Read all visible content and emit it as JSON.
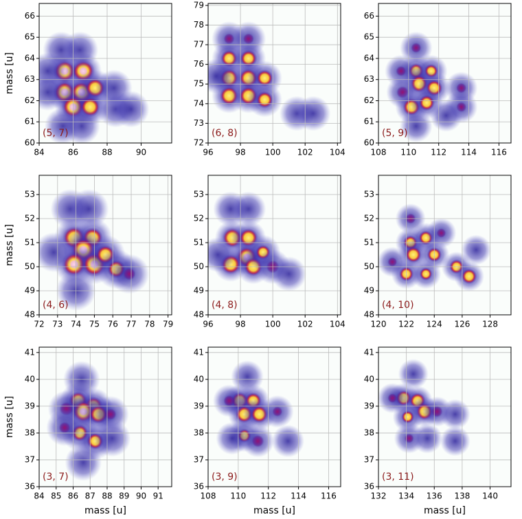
{
  "chart_data": [
    {
      "type": "heatmap",
      "label": "(5, 7)",
      "ylabel": "mass [u]",
      "xlim": [
        84,
        91.8
      ],
      "xticks": [
        84,
        86,
        88,
        90
      ],
      "ylim": [
        60,
        66.6
      ],
      "yticks": [
        60,
        61,
        62,
        63,
        64,
        65,
        66
      ],
      "grid": true,
      "x": [
        85.5,
        86.6,
        85.5,
        86.5,
        87.3,
        86,
        87,
        84.5,
        84.5,
        85.3,
        86.4,
        88.5,
        89.4,
        86.5,
        85.4,
        88.4
      ],
      "y": [
        63.4,
        63.4,
        62.4,
        62.4,
        62.6,
        61.7,
        61.7,
        63.4,
        62.4,
        64.4,
        64.4,
        61.6,
        61.6,
        60.8,
        60.8,
        62.6
      ],
      "values": [
        1,
        1,
        1,
        1,
        0.9,
        1,
        0.9,
        0.4,
        0.4,
        0.35,
        0.35,
        0.4,
        0.3,
        0.35,
        0.3,
        0.4
      ]
    },
    {
      "type": "heatmap",
      "label": "(6, 8)",
      "xlim": [
        96,
        104.2
      ],
      "xticks": [
        96,
        98,
        100,
        102,
        104
      ],
      "ylim": [
        72,
        79.1
      ],
      "yticks": [
        72,
        73,
        74,
        75,
        76,
        77,
        78,
        79
      ],
      "grid": true,
      "x": [
        97.3,
        98.5,
        97.3,
        98.5,
        97.3,
        98.5,
        99.5,
        97.3,
        98.5,
        99.5,
        101.5,
        102.5,
        96.5
      ],
      "y": [
        77.3,
        77.3,
        76.3,
        76.3,
        75.3,
        75.3,
        75.3,
        74.4,
        74.4,
        74.2,
        73.5,
        73.5,
        75.4
      ],
      "values": [
        0.5,
        0.5,
        0.8,
        0.8,
        0.9,
        0.9,
        0.8,
        0.9,
        0.9,
        0.8,
        0.4,
        0.45,
        0.4
      ]
    },
    {
      "type": "heatmap",
      "label": "(5, 9)",
      "xlim": [
        108,
        116.8
      ],
      "xticks": [
        108,
        110,
        112,
        114,
        116
      ],
      "ylim": [
        60,
        66.6
      ],
      "yticks": [
        60,
        61,
        62,
        63,
        64,
        65,
        66
      ],
      "grid": true,
      "x": [
        110.5,
        110.5,
        111.5,
        109.5,
        110.7,
        111.7,
        109.6,
        110.2,
        111.2,
        113.5,
        113.5,
        112.5,
        110.5
      ],
      "y": [
        64.5,
        63.4,
        63.4,
        63.4,
        62.8,
        62.6,
        62.4,
        61.7,
        61.9,
        61.7,
        62.6,
        61.3,
        60.8
      ],
      "values": [
        0.5,
        0.8,
        0.7,
        0.5,
        0.9,
        0.85,
        0.6,
        0.9,
        0.8,
        0.5,
        0.5,
        0.4,
        0.35
      ]
    },
    {
      "type": "heatmap",
      "label": "(4, 6)",
      "ylabel": "mass [u]",
      "xlim": [
        72,
        79.2
      ],
      "xticks": [
        72,
        73,
        74,
        75,
        76,
        77,
        78,
        79
      ],
      "ylim": [
        48,
        53.8
      ],
      "yticks": [
        48,
        49,
        50,
        51,
        52,
        53
      ],
      "grid": true,
      "x": [
        73.9,
        74.9,
        74.4,
        73.9,
        75,
        75.6,
        76.2,
        76.9,
        73.7,
        74.7,
        72.8,
        74
      ],
      "y": [
        51.2,
        51.2,
        50.7,
        50.1,
        50.1,
        50.5,
        49.9,
        49.7,
        52.4,
        52.4,
        50.6,
        49
      ],
      "values": [
        0.95,
        0.85,
        1,
        1,
        1,
        0.8,
        0.75,
        0.5,
        0.4,
        0.35,
        0.35,
        0.35
      ]
    },
    {
      "type": "heatmap",
      "label": "(4, 8)",
      "xlim": [
        96,
        104.2
      ],
      "xticks": [
        96,
        98,
        100,
        102,
        104
      ],
      "ylim": [
        48,
        53.8
      ],
      "yticks": [
        48,
        49,
        50,
        51,
        52,
        53
      ],
      "grid": true,
      "x": [
        97.5,
        98.5,
        98.4,
        97.4,
        98.8,
        99.4,
        100,
        97.4,
        98.5,
        96.6,
        101
      ],
      "y": [
        51.2,
        51.2,
        50.4,
        50.1,
        50,
        50.6,
        50,
        52.4,
        52.4,
        50.5,
        49.7
      ],
      "values": [
        0.95,
        0.9,
        1,
        0.95,
        0.9,
        0.7,
        0.6,
        0.4,
        0.35,
        0.4,
        0.35
      ]
    },
    {
      "type": "heatmap",
      "label": "(4, 10)",
      "xlim": [
        120,
        129.5
      ],
      "xticks": [
        120,
        122,
        124,
        126,
        128
      ],
      "ylim": [
        48,
        53.8
      ],
      "yticks": [
        48,
        49,
        50,
        51,
        52,
        53
      ],
      "grid": true,
      "x": [
        122.3,
        122.3,
        123.4,
        122.5,
        124,
        122,
        123.4,
        125.6,
        126.5,
        124.5,
        127,
        121
      ],
      "y": [
        52,
        51,
        51.2,
        50.5,
        50.5,
        49.7,
        49.7,
        50,
        49.6,
        51.4,
        50.7,
        50.2
      ],
      "values": [
        0.55,
        0.8,
        0.8,
        0.9,
        0.8,
        0.8,
        0.7,
        0.8,
        0.85,
        0.5,
        0.4,
        0.5
      ]
    },
    {
      "type": "heatmap",
      "label": "(3, 7)",
      "xlabel": "mass [u]",
      "ylabel": "mass [u]",
      "xlim": [
        84,
        91.8
      ],
      "xticks": [
        84,
        85,
        86,
        87,
        88,
        89,
        90,
        91
      ],
      "ylim": [
        36,
        41.2
      ],
      "yticks": [
        36,
        37,
        38,
        39,
        40,
        41
      ],
      "grid": true,
      "x": [
        86.3,
        87.2,
        86.6,
        87.5,
        85.6,
        86.4,
        87.3,
        85.5,
        88.2,
        88.3,
        86.5,
        86.6
      ],
      "y": [
        39.2,
        39,
        38.8,
        38.7,
        38.9,
        38,
        37.7,
        38.2,
        38.7,
        37.8,
        40,
        36.9
      ],
      "values": [
        0.85,
        0.85,
        1,
        0.85,
        0.6,
        0.75,
        0.75,
        0.5,
        0.5,
        0.4,
        0.4,
        0.35
      ]
    },
    {
      "type": "heatmap",
      "label": "(3, 9)",
      "xlabel": "mass [u]",
      "xlim": [
        108,
        116.8
      ],
      "xticks": [
        108,
        110,
        112,
        114,
        116
      ],
      "ylim": [
        36,
        41.2
      ],
      "yticks": [
        36,
        37,
        38,
        39,
        40,
        41
      ],
      "grid": true,
      "x": [
        110.1,
        111,
        110.4,
        111.4,
        109.4,
        110.4,
        111.3,
        112.6,
        113.3,
        110.6,
        109.6
      ],
      "y": [
        39.2,
        39.2,
        38.7,
        38.7,
        39.2,
        37.9,
        37.7,
        38.8,
        37.7,
        40.1,
        37.8
      ],
      "values": [
        0.9,
        0.85,
        0.9,
        0.9,
        0.55,
        0.7,
        0.6,
        0.5,
        0.4,
        0.4,
        0.45
      ]
    },
    {
      "type": "heatmap",
      "label": "(3, 11)",
      "xlabel": "mass [u]",
      "xlim": [
        132,
        141.5
      ],
      "xticks": [
        132,
        134,
        136,
        138,
        140
      ],
      "ylim": [
        36,
        41.2
      ],
      "yticks": [
        36,
        37,
        38,
        39,
        40,
        41
      ],
      "grid": true,
      "x": [
        133.8,
        134.8,
        135.3,
        134.1,
        136.2,
        133,
        134.5,
        137.5,
        134.2,
        135.5,
        137.5
      ],
      "y": [
        39.3,
        39.2,
        38.8,
        38.6,
        38.8,
        39.3,
        40.2,
        38.7,
        37.8,
        37.8,
        37.7
      ],
      "values": [
        0.9,
        0.9,
        0.95,
        0.7,
        0.6,
        0.5,
        0.45,
        0.45,
        0.5,
        0.45,
        0.4
      ]
    }
  ]
}
